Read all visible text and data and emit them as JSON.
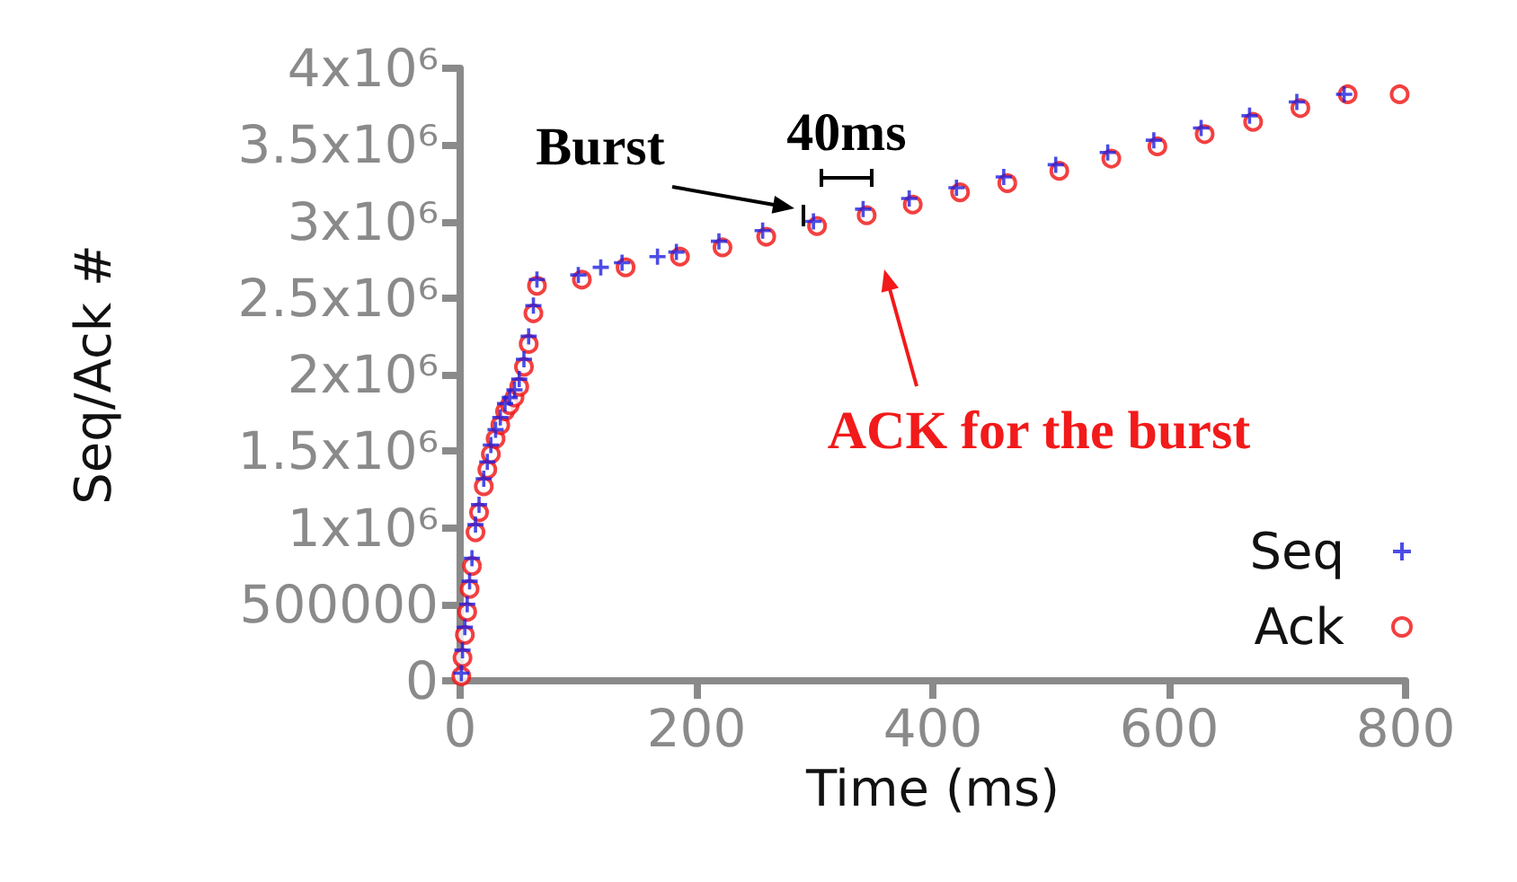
{
  "chart_data": {
    "type": "scatter",
    "xlabel": "Time (ms)",
    "ylabel": "Seq/Ack #",
    "xlim": [
      0,
      800
    ],
    "ylim": [
      0,
      4000000
    ],
    "xticks": [
      0,
      200,
      400,
      600,
      800
    ],
    "yticks": [
      0,
      500000,
      {
        "value": 1000000,
        "label": "1x10⁶"
      },
      {
        "value": 1500000,
        "label": "1.5x10⁶"
      },
      {
        "value": 2000000,
        "label": "2x10⁶"
      },
      {
        "value": 2500000,
        "label": "2.5x10⁶"
      },
      {
        "value": 3000000,
        "label": "3x10⁶"
      },
      {
        "value": 3500000,
        "label": "3.5x10⁶"
      },
      {
        "value": 4000000,
        "label": "4x10⁶"
      }
    ],
    "grid": false,
    "legend": "bottom right",
    "series": [
      {
        "name": "Seq",
        "color": "#1f1fe0",
        "marker": "cross",
        "x": [
          1,
          2,
          4,
          6,
          8,
          10,
          13,
          16,
          20,
          23,
          26,
          30,
          34,
          38,
          42,
          46,
          50,
          54,
          58,
          62,
          65,
          100,
          119,
          137,
          167,
          183,
          219,
          256,
          299,
          341,
          380,
          420,
          460,
          504,
          548,
          587,
          627,
          668,
          708,
          748
        ],
        "values": [
          50000,
          200000,
          350000,
          500000,
          650000,
          800000,
          1020000,
          1150000,
          1320000,
          1430000,
          1540000,
          1640000,
          1720000,
          1810000,
          1850000,
          1900000,
          1970000,
          2100000,
          2250000,
          2450000,
          2620000,
          2650000,
          2700000,
          2730000,
          2770000,
          2800000,
          2870000,
          2940000,
          3000000,
          3080000,
          3150000,
          3220000,
          3290000,
          3370000,
          3450000,
          3530000,
          3610000,
          3690000,
          3780000,
          3830000
        ]
      },
      {
        "name": "Ack",
        "color": "#f01010",
        "marker": "circle",
        "x": [
          1,
          2,
          4,
          6,
          8,
          10,
          13,
          16,
          20,
          23,
          26,
          30,
          34,
          38,
          42,
          46,
          50,
          54,
          58,
          62,
          65,
          103,
          140,
          186,
          222,
          259,
          302,
          344,
          383,
          423,
          463,
          507,
          551,
          590,
          630,
          671,
          711,
          751,
          795
        ],
        "values": [
          30000,
          150000,
          300000,
          450000,
          600000,
          750000,
          970000,
          1100000,
          1270000,
          1380000,
          1480000,
          1580000,
          1670000,
          1760000,
          1800000,
          1850000,
          1920000,
          2050000,
          2200000,
          2400000,
          2580000,
          2620000,
          2700000,
          2770000,
          2830000,
          2900000,
          2970000,
          3040000,
          3110000,
          3190000,
          3250000,
          3330000,
          3410000,
          3490000,
          3570000,
          3650000,
          3740000,
          3830000,
          3830000
        ]
      }
    ],
    "annotations": [
      "Burst",
      "40ms",
      "ACK for the burst"
    ]
  }
}
